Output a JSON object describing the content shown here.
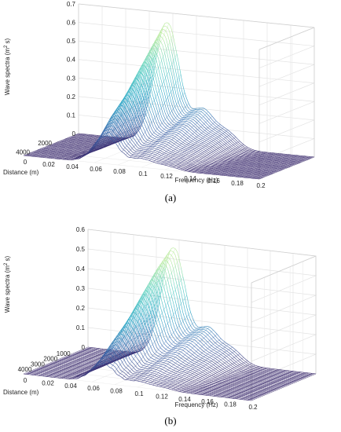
{
  "captions": {
    "a": "(a)",
    "b": "(b)"
  },
  "chart_data": [
    {
      "type": "waterfall-3d",
      "panel": "a",
      "xlabel": "Frequency (Hz)",
      "ylabel": "Distance (m)",
      "zlabel": "Wave spectra (m2 s)",
      "xlim": [
        0,
        0.2
      ],
      "ylim": [
        0,
        5000
      ],
      "zlim": [
        0,
        0.7
      ],
      "x_ticks": [
        "0",
        "0.02",
        "0.04",
        "0.06",
        "0.08",
        "0.1",
        "0.12",
        "0.14",
        "0.16",
        "0.18",
        "0.2"
      ],
      "y_ticks": [
        "2000",
        "4000"
      ],
      "z_ticks": [
        "0",
        "0.1",
        "0.2",
        "0.3",
        "0.4",
        "0.5",
        "0.6",
        "0.7"
      ],
      "grid": true,
      "colormap": [
        "#3b2b6e",
        "#3d6db0",
        "#2ea9c8",
        "#5ad0c0",
        "#b8ea9a"
      ],
      "series": [
        {
          "distance": 0,
          "peak_freq": 0.075,
          "peak": 0.65
        },
        {
          "distance": 1000,
          "peak_freq": 0.074,
          "peak": 0.55
        },
        {
          "distance": 2000,
          "peak_freq": 0.073,
          "peak": 0.45
        },
        {
          "distance": 3000,
          "peak_freq": 0.072,
          "peak": 0.35
        },
        {
          "distance": 4000,
          "peak_freq": 0.07,
          "peak": 0.25
        },
        {
          "distance": 5000,
          "peak_freq": 0.07,
          "peak": 0.15
        }
      ]
    },
    {
      "type": "waterfall-3d",
      "panel": "b",
      "xlabel": "Frequency (Hz)",
      "ylabel": "Distance (m)",
      "zlabel": "Wave spectra (m2 s)",
      "xlim": [
        0,
        0.2
      ],
      "ylim": [
        0,
        5000
      ],
      "zlim": [
        0,
        0.6
      ],
      "x_ticks": [
        "0",
        "0.02",
        "0.04",
        "0.06",
        "0.08",
        "0.1",
        "0.12",
        "0.14",
        "0.16",
        "0.18",
        "0.2"
      ],
      "y_ticks": [
        "1000",
        "2000",
        "3000",
        "4000"
      ],
      "z_ticks": [
        "0",
        "0.1",
        "0.2",
        "0.3",
        "0.4",
        "0.5",
        "0.6"
      ],
      "grid": true,
      "colormap": [
        "#3b2b6e",
        "#3d6db0",
        "#2ea9c8",
        "#5ad0c0",
        "#b8ea9a"
      ],
      "series": [
        {
          "distance": 0,
          "peak_freq": 0.075,
          "peak": 0.56
        },
        {
          "distance": 1000,
          "peak_freq": 0.074,
          "peak": 0.48
        },
        {
          "distance": 2000,
          "peak_freq": 0.073,
          "peak": 0.38
        },
        {
          "distance": 3000,
          "peak_freq": 0.072,
          "peak": 0.28
        },
        {
          "distance": 4000,
          "peak_freq": 0.07,
          "peak": 0.18
        },
        {
          "distance": 5000,
          "peak_freq": 0.07,
          "peak": 0.1
        }
      ]
    }
  ]
}
